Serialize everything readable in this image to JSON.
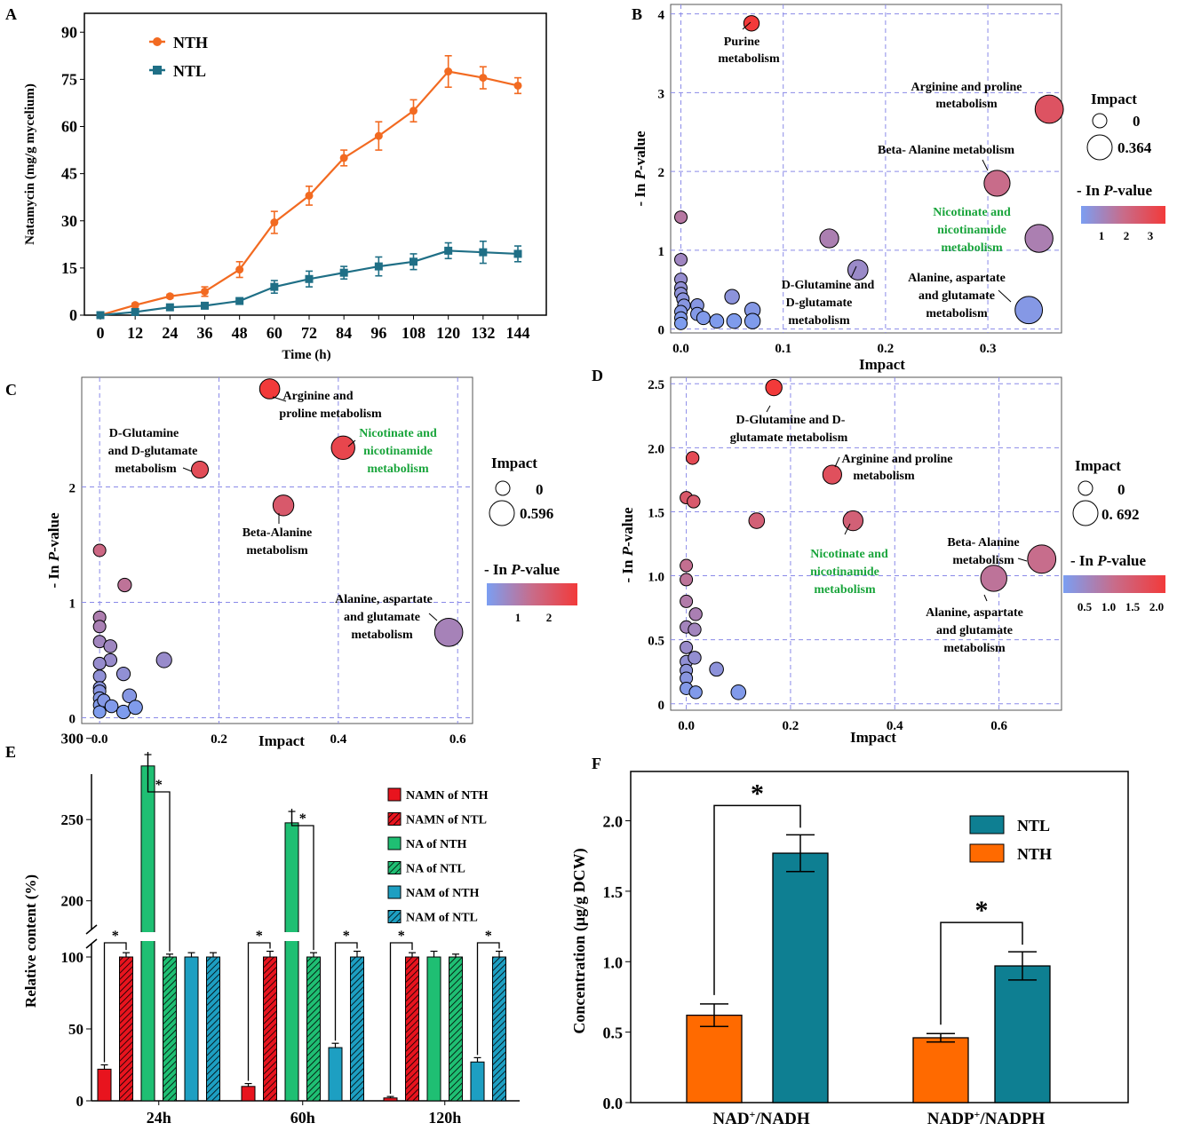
{
  "colors": {
    "nth_line": "#f26a21",
    "ntl_line": "#1f6f86",
    "bubble_low": "#7b9ef2",
    "bubble_mid": "#c86c8a",
    "bubble_high": "#f23a3a",
    "grid": "#8a8ae8",
    "green_label": "#1aa53c",
    "e_red": "#e8141e",
    "e_green": "#1fbf73",
    "e_blue": "#1d9fc2",
    "f_ntl": "#0e7f92",
    "f_nth": "#ff6a00"
  },
  "chart_data": [
    {
      "panel": "A",
      "type": "line",
      "xlabel": "Time (h)",
      "ylabel": "Natamycin (mg/g mycelium)",
      "x": [
        0,
        12,
        24,
        36,
        48,
        60,
        72,
        84,
        96,
        108,
        120,
        132,
        144
      ],
      "xticks": [
        "0",
        "12",
        "24",
        "36",
        "48",
        "60",
        "72",
        "84",
        "96",
        "108",
        "120",
        "132",
        "144"
      ],
      "yticks": [
        "0",
        "15",
        "30",
        "45",
        "60",
        "75",
        "90"
      ],
      "ylim": [
        0,
        96
      ],
      "series": [
        {
          "name": "NTH",
          "values": [
            0,
            3.2,
            6.0,
            7.5,
            14.5,
            29.5,
            38.0,
            50.0,
            57.0,
            65.0,
            77.5,
            75.5,
            73.0
          ],
          "errors": [
            0,
            0.6,
            0.6,
            1.5,
            2.5,
            3.5,
            3.0,
            2.5,
            4.5,
            3.5,
            5.0,
            3.5,
            2.5
          ]
        },
        {
          "name": "NTL",
          "values": [
            0,
            1.0,
            2.5,
            3.0,
            4.5,
            9.0,
            11.5,
            13.5,
            15.5,
            17.0,
            20.5,
            20.0,
            19.5
          ],
          "errors": [
            0,
            0.4,
            0.4,
            0.5,
            0.6,
            2.0,
            2.5,
            2.0,
            3.0,
            2.5,
            2.5,
            3.5,
            2.5
          ]
        }
      ]
    },
    {
      "panel": "B",
      "type": "scatter",
      "xlabel": "Impact",
      "ylabel": "- In P-value",
      "xticks": [
        "0.0",
        "0.1",
        "0.2",
        "0.3"
      ],
      "yticks": [
        "0",
        "1",
        "2",
        "3",
        "4"
      ],
      "xlim": [
        -0.01,
        0.372
      ],
      "ylim": [
        -0.05,
        4.12
      ],
      "legend_title": "Impact",
      "size_legend": [
        "0",
        "0.364"
      ],
      "color_legend_title": "- In P-value",
      "color_ticks": [
        "1",
        "2",
        "3"
      ],
      "points": [
        {
          "x": 0.069,
          "y": 3.88
        },
        {
          "x": 0.36,
          "y": 2.79
        },
        {
          "x": 0.309,
          "y": 1.85
        },
        {
          "x": 0.35,
          "y": 1.15
        },
        {
          "x": 0.145,
          "y": 1.15
        },
        {
          "x": 0.173,
          "y": 0.75
        },
        {
          "x": 0.34,
          "y": 0.24
        },
        {
          "x": 0.0,
          "y": 1.42
        },
        {
          "x": 0.0,
          "y": 0.88
        },
        {
          "x": 0.0,
          "y": 0.63
        },
        {
          "x": 0.0,
          "y": 0.52
        },
        {
          "x": 0.0,
          "y": 0.45
        },
        {
          "x": 0.002,
          "y": 0.38
        },
        {
          "x": 0.003,
          "y": 0.3
        },
        {
          "x": 0.0,
          "y": 0.22
        },
        {
          "x": 0.0,
          "y": 0.14
        },
        {
          "x": 0.0,
          "y": 0.07
        },
        {
          "x": 0.016,
          "y": 0.3
        },
        {
          "x": 0.016,
          "y": 0.19
        },
        {
          "x": 0.022,
          "y": 0.14
        },
        {
          "x": 0.035,
          "y": 0.1
        },
        {
          "x": 0.05,
          "y": 0.41
        },
        {
          "x": 0.052,
          "y": 0.1
        },
        {
          "x": 0.07,
          "y": 0.24
        },
        {
          "x": 0.07,
          "y": 0.1
        }
      ],
      "annotations": [
        "Purine metabolism",
        "Arginine and proline metabolism",
        "Beta- Alanine metabolism",
        "Nicotinate and nicotinamide metabolism",
        "D-Glutamine and D-glutamate metabolism",
        "Alanine, aspartate and glutamate metabolism"
      ]
    },
    {
      "panel": "C",
      "type": "scatter",
      "xlabel": "Impact",
      "ylabel": "- In P-value",
      "xticks": [
        "0.0",
        "0.2",
        "0.4",
        "0.6"
      ],
      "yticks": [
        "0",
        "1",
        "2"
      ],
      "xlim": [
        -0.03,
        0.625
      ],
      "ylim": [
        -0.05,
        2.95
      ],
      "legend_title": "Impact",
      "size_legend": [
        "0",
        "0.596"
      ],
      "color_legend_title": "- In P-value",
      "color_ticks": [
        "1",
        "2"
      ],
      "points": [
        {
          "x": 0.285,
          "y": 2.85
        },
        {
          "x": 0.408,
          "y": 2.34
        },
        {
          "x": 0.168,
          "y": 2.15
        },
        {
          "x": 0.308,
          "y": 1.84
        },
        {
          "x": 0.585,
          "y": 0.74
        },
        {
          "x": 0.0,
          "y": 1.45
        },
        {
          "x": 0.042,
          "y": 1.15
        },
        {
          "x": 0.0,
          "y": 0.87
        },
        {
          "x": 0.0,
          "y": 0.79
        },
        {
          "x": 0.0,
          "y": 0.66
        },
        {
          "x": 0.018,
          "y": 0.62
        },
        {
          "x": 0.018,
          "y": 0.5
        },
        {
          "x": 0.0,
          "y": 0.47
        },
        {
          "x": 0.0,
          "y": 0.36
        },
        {
          "x": 0.0,
          "y": 0.26
        },
        {
          "x": 0.0,
          "y": 0.23
        },
        {
          "x": 0.0,
          "y": 0.17
        },
        {
          "x": 0.0,
          "y": 0.11
        },
        {
          "x": 0.0,
          "y": 0.05
        },
        {
          "x": 0.007,
          "y": 0.15
        },
        {
          "x": 0.02,
          "y": 0.1
        },
        {
          "x": 0.04,
          "y": 0.38
        },
        {
          "x": 0.04,
          "y": 0.05
        },
        {
          "x": 0.05,
          "y": 0.19
        },
        {
          "x": 0.06,
          "y": 0.09
        },
        {
          "x": 0.108,
          "y": 0.5
        }
      ],
      "annotations": [
        "Arginine and proline metabolism",
        "Nicotinate and nicotinamide metabolism",
        "D-Glutamine and D-glutamate metabolism",
        "Beta- Alanine metabolism",
        "Alanine, aspartate and glutamate metabolism"
      ]
    },
    {
      "panel": "D",
      "type": "scatter",
      "xlabel": "Impact",
      "ylabel": "- In P-value",
      "xticks": [
        "0.0",
        "0.2",
        "0.4",
        "0.6"
      ],
      "yticks": [
        "0",
        "0.5",
        "1.0",
        "1.5",
        "2.0",
        "2.5"
      ],
      "xlim": [
        -0.03,
        0.72
      ],
      "ylim": [
        -0.05,
        2.55
      ],
      "legend_title": "Impact",
      "size_legend": [
        "0",
        "0. 692"
      ],
      "color_legend_title": "- In P-value",
      "color_ticks": [
        "0.5",
        "1.0",
        "1.5",
        "2.0"
      ],
      "points": [
        {
          "x": 0.168,
          "y": 2.47
        },
        {
          "x": 0.012,
          "y": 1.92
        },
        {
          "x": 0.28,
          "y": 1.79
        },
        {
          "x": 0.0,
          "y": 1.61
        },
        {
          "x": 0.014,
          "y": 1.58
        },
        {
          "x": 0.135,
          "y": 1.43
        },
        {
          "x": 0.32,
          "y": 1.43
        },
        {
          "x": 0.682,
          "y": 1.13
        },
        {
          "x": 0.59,
          "y": 0.98
        },
        {
          "x": 0.0,
          "y": 1.08
        },
        {
          "x": 0.0,
          "y": 0.97
        },
        {
          "x": 0.0,
          "y": 0.8
        },
        {
          "x": 0.018,
          "y": 0.7
        },
        {
          "x": 0.0,
          "y": 0.6
        },
        {
          "x": 0.016,
          "y": 0.58
        },
        {
          "x": 0.0,
          "y": 0.44
        },
        {
          "x": 0.0,
          "y": 0.33
        },
        {
          "x": 0.016,
          "y": 0.36
        },
        {
          "x": 0.0,
          "y": 0.26
        },
        {
          "x": 0.0,
          "y": 0.2
        },
        {
          "x": 0.0,
          "y": 0.12
        },
        {
          "x": 0.018,
          "y": 0.09
        },
        {
          "x": 0.058,
          "y": 0.27
        },
        {
          "x": 0.1,
          "y": 0.09
        }
      ],
      "annotations": [
        "D-Glutamine and D-glutamate metabolism",
        "Arginine and proline metabolism",
        "Nicotinate and nicotinamide metabolism",
        "Beta- Alanine metabolism",
        "Alanine, aspartate and glutamate metabolism"
      ]
    },
    {
      "panel": "E",
      "type": "bar",
      "ylabel": "Relative content (%)",
      "categories": [
        "24h",
        "60h",
        "120h"
      ],
      "yticks_lower": [
        "0",
        "50",
        "100"
      ],
      "yticks_upper": [
        "200",
        "250",
        "300"
      ],
      "axis_break": [
        105,
        190
      ],
      "series": [
        {
          "name": "NAMN of NTH",
          "values": [
            22,
            10,
            2
          ],
          "errors": [
            3,
            2,
            1
          ]
        },
        {
          "name": "NAMN of NTL",
          "values": [
            100,
            100,
            100
          ],
          "errors": [
            3,
            4,
            3
          ]
        },
        {
          "name": "NA of NTH",
          "values": [
            283,
            248,
            100
          ],
          "errors": [
            7,
            7,
            4
          ]
        },
        {
          "name": "NA of NTL",
          "values": [
            100,
            100,
            100
          ],
          "errors": [
            2,
            3,
            2
          ]
        },
        {
          "name": "NAM of NTH",
          "values": [
            100,
            37,
            27
          ],
          "errors": [
            3,
            3,
            3
          ]
        },
        {
          "name": "NAM of NTL",
          "values": [
            100,
            100,
            100
          ],
          "errors": [
            3,
            4,
            4
          ]
        }
      ],
      "significance": "*"
    },
    {
      "panel": "F",
      "type": "bar",
      "ylabel": "Concentration (µg/g DCW)",
      "categories": [
        "NAD+/NADH",
        "NADP+/NADPH"
      ],
      "yticks": [
        "0.0",
        "0.5",
        "1.0",
        "1.5",
        "2.0"
      ],
      "ylim": [
        0,
        2.35
      ],
      "series": [
        {
          "name": "NTL",
          "values": [
            1.77,
            0.97
          ],
          "errors": [
            0.13,
            0.1
          ]
        },
        {
          "name": "NTH",
          "values": [
            0.62,
            0.46
          ],
          "errors": [
            0.08,
            0.03
          ]
        }
      ],
      "significance": "*"
    }
  ],
  "labels": {
    "panel_a": "A",
    "panel_b": "B",
    "panel_c": "C",
    "panel_d": "D",
    "panel_e": "E",
    "panel_f": "F",
    "a_legend_nth": "NTH",
    "a_legend_ntl": "NTL",
    "p_value_italic": "P",
    "b_ann": {
      "purine_1": "Purine",
      "purine_2": "metabolism",
      "arg_1": "Arginine and proline",
      "arg_2": "metabolism",
      "beta": "Beta- Alanine metabolism",
      "nic_1": "Nicotinate and",
      "nic_2": "nicotinamide",
      "nic_3": "metabolism",
      "dglu_1": "D-Glutamine and",
      "dglu_2": "D-glutamate",
      "dglu_3": "metabolism",
      "ala_1": "Alanine, aspartate",
      "ala_2": "and glutamate",
      "ala_3": "metabolism"
    },
    "c_ann": {
      "arg_1": "Arginine and",
      "arg_2": "proline metabolism",
      "nic_1": "Nicotinate and",
      "nic_2": "nicotinamide",
      "nic_3": "metabolism",
      "dglu_1": "D-Glutamine",
      "dglu_2": "and D-glutamate",
      "dglu_3": "metabolism",
      "beta_1": "Beta-Alanine",
      "beta_2": "metabolism",
      "ala_1": "Alanine, aspartate",
      "ala_2": "and glutamate",
      "ala_3": "metabolism"
    },
    "d_ann": {
      "dglu_1": "D-Glutamine and D-",
      "dglu_2": "glutamate metabolism",
      "arg_1": "Arginine and proline",
      "arg_2": "metabolism",
      "nic_1": "Nicotinate and",
      "nic_2": "nicotinamide",
      "nic_3": "metabolism",
      "beta_1": "Beta- Alanine",
      "beta_2": "metabolism",
      "ala_1": "Alanine, aspartate",
      "ala_2": "and glutamate",
      "ala_3": "metabolism"
    },
    "f_nad": "NAD",
    "f_nadh": "/NADH",
    "f_nadp": "NADP",
    "f_nadph": "/NADPH",
    "plus": "+"
  }
}
